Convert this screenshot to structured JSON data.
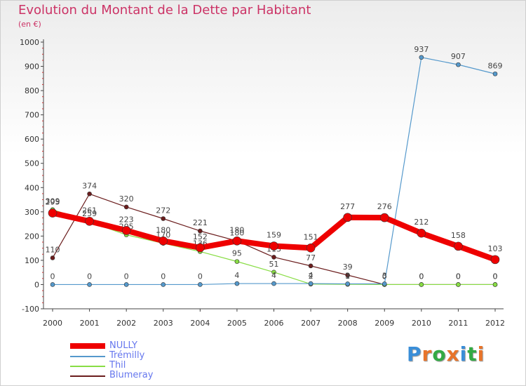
{
  "title": "Evolution du Montant de la Dette par Habitant",
  "subtitle": "(en €)",
  "logo": "Proxiti",
  "chart_data": {
    "type": "line",
    "x": [
      2000,
      2001,
      2002,
      2003,
      2004,
      2005,
      2006,
      2007,
      2008,
      2009,
      2010,
      2011,
      2012
    ],
    "ylim": [
      -100,
      1000
    ],
    "yticks": [
      -100,
      0,
      100,
      200,
      300,
      400,
      500,
      600,
      700,
      800,
      900,
      1000
    ],
    "grid": false,
    "legend_position": "bottom-left",
    "series": [
      {
        "name": "Blumeray",
        "color": "#6b1d1d",
        "width": 1.2,
        "values": [
          110,
          374,
          320,
          272,
          221,
          180,
          113,
          77,
          39,
          0,
          0,
          0,
          0
        ]
      },
      {
        "name": "Thil",
        "color": "#88dd44",
        "width": 1.2,
        "values": [
          309,
          259,
          205,
          170,
          136,
          95,
          51,
          2,
          1,
          0,
          0,
          0,
          0
        ]
      },
      {
        "name": "Trémilly",
        "color": "#5599cc",
        "width": 1.2,
        "values": [
          0,
          0,
          0,
          0,
          0,
          4,
          4,
          4,
          3,
          3,
          937,
          907,
          869
        ]
      },
      {
        "name": "NULLY",
        "color": "#ee0000",
        "width": 8,
        "values": [
          295,
          261,
          223,
          180,
          152,
          180,
          159,
          151,
          277,
          276,
          212,
          158,
          103
        ]
      }
    ]
  }
}
